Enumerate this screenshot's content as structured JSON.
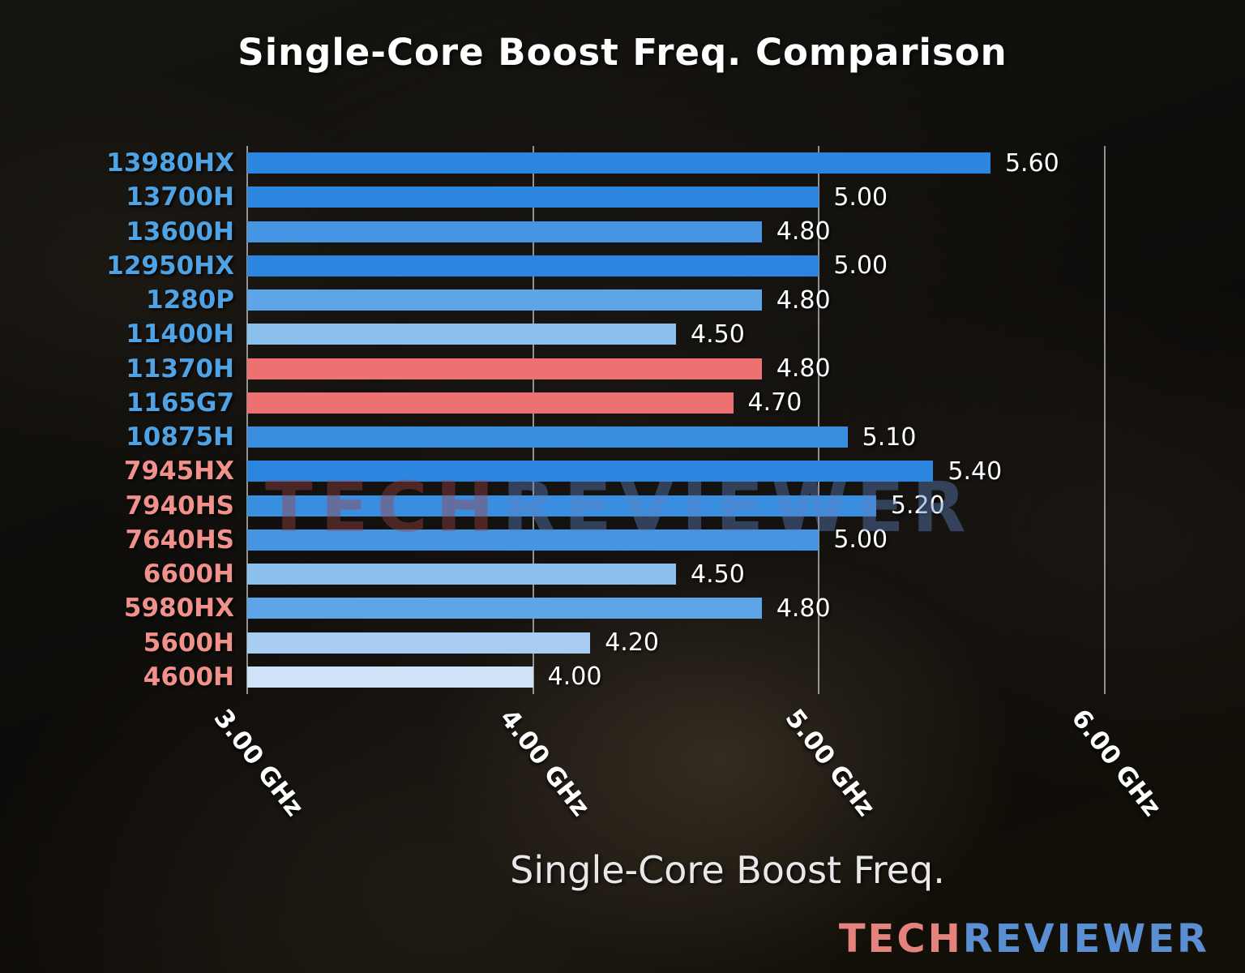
{
  "watermark": {
    "left": "TECH",
    "right": "REVIEWER"
  },
  "logo": {
    "left": "TECH",
    "right": "REVIEWER"
  },
  "chart_data": {
    "type": "bar",
    "orientation": "horizontal",
    "title": "Single-Core Boost Freq. Comparison",
    "xlabel": "Single-Core Boost Freq.",
    "x_unit": "GHz",
    "grid": true,
    "axis": {
      "min": 3.0,
      "max": 6.36,
      "ticks": [
        {
          "value": 3.0,
          "label": "3.00 GHz"
        },
        {
          "value": 4.0,
          "label": "4.00 GHz"
        },
        {
          "value": 5.0,
          "label": "5.00 GHz"
        },
        {
          "value": 6.0,
          "label": "6.00 GHz"
        }
      ]
    },
    "rows": [
      {
        "label": "13980HX",
        "value": 5.6,
        "value_label": "5.60",
        "bar_color": "#2c85de",
        "label_color": "#4fa3e4"
      },
      {
        "label": "13700H",
        "value": 5.0,
        "value_label": "5.00",
        "bar_color": "#2c85de",
        "label_color": "#4fa3e4"
      },
      {
        "label": "13600H",
        "value": 4.8,
        "value_label": "4.80",
        "bar_color": "#4595e2",
        "label_color": "#4fa3e4"
      },
      {
        "label": "12950HX",
        "value": 5.0,
        "value_label": "5.00",
        "bar_color": "#2c85de",
        "label_color": "#4fa3e4"
      },
      {
        "label": "1280P",
        "value": 4.8,
        "value_label": "4.80",
        "bar_color": "#5ea5e7",
        "label_color": "#4fa3e4"
      },
      {
        "label": "11400H",
        "value": 4.5,
        "value_label": "4.50",
        "bar_color": "#8cc0ef",
        "label_color": "#4fa3e4"
      },
      {
        "label": "11370H",
        "value": 4.8,
        "value_label": "4.80",
        "bar_color": "#ec7170",
        "label_color": "#4fa3e4"
      },
      {
        "label": "1165G7",
        "value": 4.7,
        "value_label": "4.70",
        "bar_color": "#ec7170",
        "label_color": "#4fa3e4"
      },
      {
        "label": "10875H",
        "value": 5.1,
        "value_label": "5.10",
        "bar_color": "#3a8ee0",
        "label_color": "#4fa3e4"
      },
      {
        "label": "7945HX",
        "value": 5.4,
        "value_label": "5.40",
        "bar_color": "#2c85de",
        "label_color": "#f0918b"
      },
      {
        "label": "7940HS",
        "value": 5.2,
        "value_label": "5.20",
        "bar_color": "#3a8ee0",
        "label_color": "#f0918b"
      },
      {
        "label": "7640HS",
        "value": 5.0,
        "value_label": "5.00",
        "bar_color": "#4595e2",
        "label_color": "#f0918b"
      },
      {
        "label": "6600H",
        "value": 4.5,
        "value_label": "4.50",
        "bar_color": "#8cc0ef",
        "label_color": "#f0918b"
      },
      {
        "label": "5980HX",
        "value": 4.8,
        "value_label": "4.80",
        "bar_color": "#5ea5e7",
        "label_color": "#f0918b"
      },
      {
        "label": "5600H",
        "value": 4.2,
        "value_label": "4.20",
        "bar_color": "#a9ccf3",
        "label_color": "#f0918b"
      },
      {
        "label": "4600H",
        "value": 4.0,
        "value_label": "4.00",
        "bar_color": "#cfe2f7",
        "label_color": "#f0918b"
      }
    ]
  }
}
